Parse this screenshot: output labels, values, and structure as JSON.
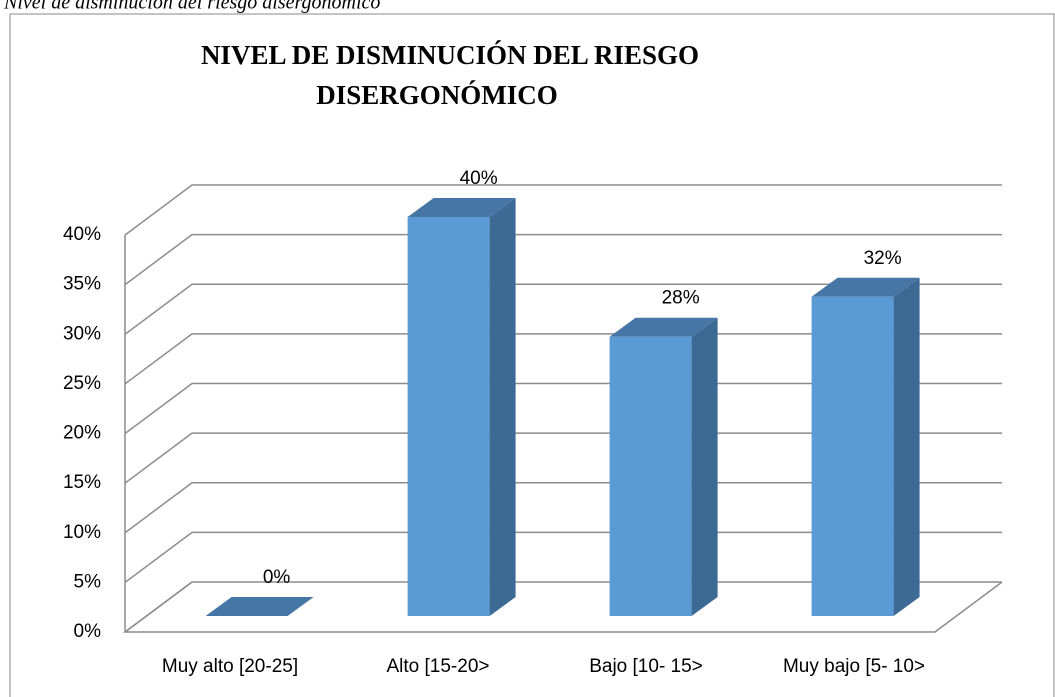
{
  "caption": "Nivel de disminución del riesgo disergonómico",
  "chart_data": {
    "type": "bar3d",
    "title": [
      "NIVEL DE DISMINUCIÓN DEL RIESGO",
      "DISERGONÓMICO"
    ],
    "categories": [
      "Muy alto [20-25]",
      "Alto [15-20>",
      "Bajo [10- 15>",
      "Muy bajo [5- 10>"
    ],
    "values": [
      0,
      40,
      28,
      32
    ],
    "value_labels": [
      "0%",
      "40%",
      "28%",
      "32%"
    ],
    "color": "#5b9bd5",
    "ylim": [
      0,
      40
    ],
    "yticks": [
      {
        "value": 0,
        "label": "0%"
      },
      {
        "value": 5,
        "label": "5%"
      },
      {
        "value": 10,
        "label": "10%"
      },
      {
        "value": 15,
        "label": "15%"
      },
      {
        "value": 20,
        "label": "20%"
      },
      {
        "value": 25,
        "label": "25%"
      },
      {
        "value": 30,
        "label": "30%"
      },
      {
        "value": 35,
        "label": "35%"
      },
      {
        "value": 40,
        "label": "40%"
      }
    ],
    "grid": true
  }
}
